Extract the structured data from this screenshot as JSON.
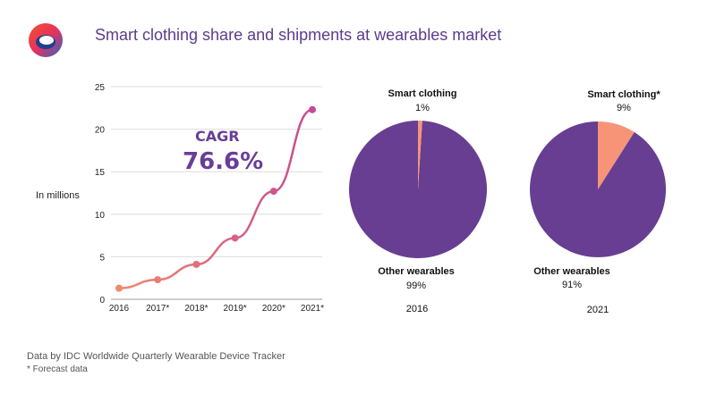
{
  "header": {
    "title": "Smart clothing share and shipments at wearables market",
    "logo_icon": "ring-logo-icon"
  },
  "cagr": {
    "label": "CAGR",
    "value": "76.6%"
  },
  "colors": {
    "title": "#5b3c8c",
    "line_start": "#f2886b",
    "line_end": "#c44a96",
    "pie_main": "#673e92",
    "pie_accent": "#f79478",
    "grid": "#dddddd",
    "cagr": "#6a3d98"
  },
  "chart_data": [
    {
      "type": "line",
      "ylabel": "In millions",
      "categories": [
        "2016",
        "2017*",
        "2018*",
        "2019*",
        "2020*",
        "2021*"
      ],
      "values": [
        1.3,
        2.3,
        4.1,
        7.2,
        12.7,
        22.3
      ],
      "ylim": [
        0,
        25
      ],
      "yticks": [
        0,
        5,
        10,
        15,
        20,
        25
      ],
      "grid": true
    },
    {
      "type": "pie",
      "year_label": "2016",
      "slices": [
        {
          "label": "Smart clothing",
          "value_label": "1%",
          "value": 1
        },
        {
          "label": "Other wearables",
          "value_label": "99%",
          "value": 99
        }
      ]
    },
    {
      "type": "pie",
      "year_label": "2021",
      "slices": [
        {
          "label": "Smart clothing*",
          "value_label": "9%",
          "value": 9
        },
        {
          "label": "Other wearables",
          "value_label": "91%",
          "value": 91
        }
      ]
    }
  ],
  "footer": {
    "source": "Data by IDC Worldwide Quarterly Wearable Device Tracker",
    "footnote": "* Forecast data"
  }
}
